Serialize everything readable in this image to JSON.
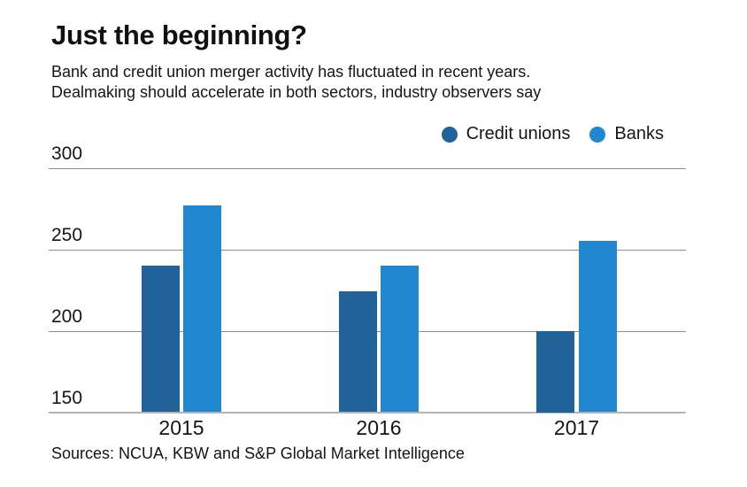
{
  "header": {
    "title": "Just the beginning?",
    "subtitle_line1": "Bank and credit union merger activity has fluctuated in recent years.",
    "subtitle_line2": "Dealmaking should accelerate in both sectors, industry observers say"
  },
  "legend": {
    "items": [
      {
        "label": "Credit unions",
        "color": "#20639a"
      },
      {
        "label": "Banks",
        "color": "#2187d0"
      }
    ]
  },
  "chart_data": {
    "type": "bar",
    "title": "Just the beginning?",
    "categories": [
      "2015",
      "2016",
      "2017"
    ],
    "series": [
      {
        "name": "Credit unions",
        "color": "#20639a",
        "values": [
          240,
          224,
          200
        ]
      },
      {
        "name": "Banks",
        "color": "#2187d0",
        "values": [
          277,
          240,
          255
        ]
      }
    ],
    "xlabel": "",
    "ylabel": "",
    "ylim": [
      150,
      300
    ],
    "yticks": [
      150,
      200,
      250,
      300
    ],
    "grid": true,
    "legend_position": "top-right"
  },
  "footer": {
    "source": "Sources: NCUA, KBW and S&P Global Market Intelligence"
  },
  "colors": {
    "credit_unions": "#20639a",
    "banks": "#2187d0",
    "gridline": "#8d8d8d",
    "baseline": "#b5b5b5",
    "text": "#111111"
  }
}
